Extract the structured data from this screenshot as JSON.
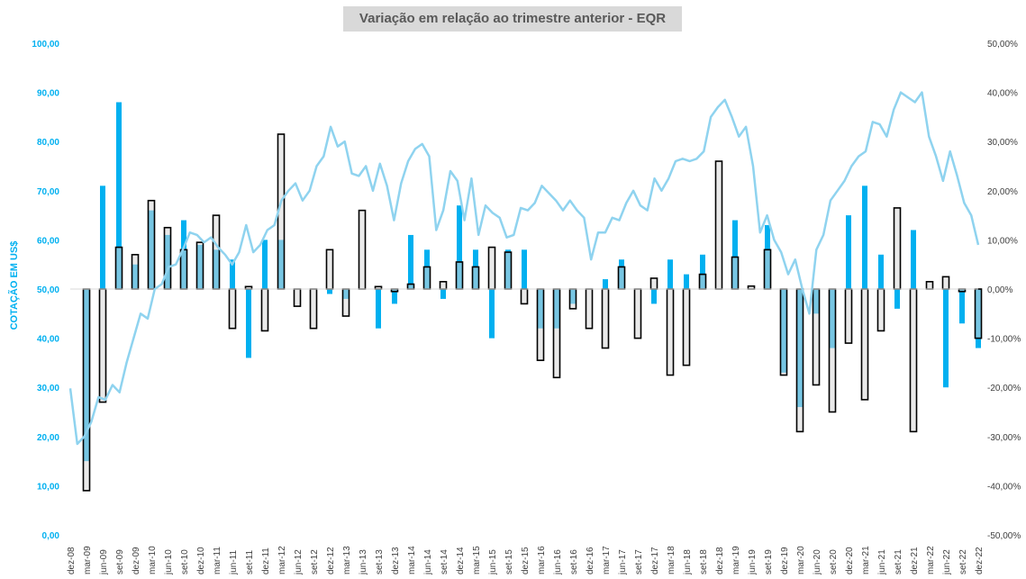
{
  "chart_data": {
    "type": "bar",
    "title": "Variação em relação ao trimestre anterior - EQR",
    "ylabel": "COTAÇÃO EM US$",
    "ylim_left": [
      0,
      100
    ],
    "ylim_right": [
      -50,
      50
    ],
    "y_ticks_left": [
      "0,00",
      "10,00",
      "20,00",
      "30,00",
      "40,00",
      "50,00",
      "60,00",
      "70,00",
      "80,00",
      "90,00",
      "100,00"
    ],
    "y_ticks_right": [
      "-50,00%",
      "-40,00%",
      "-30,00%",
      "-20,00%",
      "-10,00%",
      "0,00%",
      "10,00%",
      "20,00%",
      "30,00%",
      "40,00%",
      "50,00%"
    ],
    "x_labels": [
      "dez-08",
      "mar-09",
      "jun-09",
      "set-09",
      "dez-09",
      "mar-10",
      "jun-10",
      "set-10",
      "dez-10",
      "mar-11",
      "jun-11",
      "set-11",
      "dez-11",
      "mar-12",
      "jun-12",
      "set-12",
      "dez-12",
      "mar-13",
      "jun-13",
      "set-13",
      "dez-13",
      "mar-14",
      "jun-14",
      "set-14",
      "dez-14",
      "mar-15",
      "jun-15",
      "set-15",
      "dez-15",
      "mar-16",
      "jun-16",
      "set-16",
      "dez-16",
      "mar-17",
      "jun-17",
      "set-17",
      "dez-17",
      "mar-18",
      "jun-18",
      "set-18",
      "dez-18",
      "mar-19",
      "jun-19",
      "set-19",
      "dez-19",
      "mar-20",
      "jun-20",
      "set-20",
      "dez-20",
      "mar-21",
      "jun-21",
      "set-21",
      "dez-21",
      "mar-22",
      "jun-22",
      "set-22",
      "dez-22"
    ],
    "quarters": [
      "dez-08",
      "mar-09",
      "jun-09",
      "set-09",
      "dez-09",
      "mar-10",
      "jun-10",
      "set-10",
      "dez-10",
      "mar-11",
      "jun-11",
      "set-11",
      "dez-11",
      "mar-12",
      "jun-12",
      "set-12",
      "dez-12",
      "mar-13",
      "jun-13",
      "set-13",
      "dez-13",
      "mar-14",
      "jun-14",
      "set-14",
      "dez-14",
      "mar-15",
      "jun-15",
      "set-15",
      "dez-15",
      "mar-16",
      "jun-16",
      "set-16",
      "dez-16",
      "mar-17",
      "jun-17",
      "set-17",
      "dez-17",
      "mar-18",
      "jun-18",
      "set-18",
      "dez-18",
      "mar-19",
      "jun-19",
      "set-19",
      "dez-19",
      "mar-20",
      "jun-20",
      "set-20",
      "dez-20",
      "mar-21",
      "jun-21",
      "set-21",
      "dez-21",
      "mar-22",
      "jun-22",
      "set-22",
      "dez-22"
    ],
    "series": [
      {
        "values": [
          null,
          -35,
          21,
          38,
          5,
          16,
          11,
          14,
          9,
          8,
          6,
          -14,
          10,
          10,
          0,
          0,
          -1,
          -2,
          0,
          -8,
          -3,
          11,
          8,
          -2,
          17,
          8,
          -10,
          8,
          8,
          -8,
          -8,
          -3,
          0,
          2,
          6,
          0,
          -3,
          6,
          3,
          7,
          0,
          14,
          0,
          13,
          -17,
          -24,
          -5,
          -12,
          15,
          21,
          7,
          -4,
          12,
          0,
          -20,
          -7,
          -12
        ]
      },
      {
        "values": [
          null,
          -41,
          -23,
          8.5,
          7,
          18,
          12.5,
          8,
          9.5,
          15,
          -8,
          0.5,
          -8.5,
          31.5,
          -3.5,
          -8,
          8,
          -5.5,
          16,
          0.5,
          -0.5,
          1,
          4.5,
          1.5,
          5.5,
          4.5,
          8.5,
          7.5,
          -3,
          -14.5,
          -18,
          -4,
          -8,
          -12,
          4.5,
          -10,
          2.2,
          -17.5,
          -15.5,
          3,
          26,
          6.5,
          0.6,
          8,
          -17.5,
          -29,
          -19.5,
          -25,
          -11,
          -22.5,
          -8.5,
          16.5,
          -29,
          1.5,
          2.5,
          -0.5,
          -10
        ]
      },
      {
        "values": [
          29.8,
          18.5,
          20,
          23,
          28,
          27.5,
          30.5,
          29,
          35,
          40,
          45,
          44,
          50,
          51,
          54.5,
          55,
          58,
          61.5,
          61,
          59.5,
          60.5,
          58.5,
          57,
          55,
          57.5,
          63,
          57.5,
          59,
          62,
          63,
          68,
          70,
          71.5,
          68,
          70,
          75,
          77,
          83,
          79,
          80,
          73.5,
          73,
          75,
          70,
          75.5,
          71,
          64,
          71.5,
          76,
          78.5,
          79.5,
          77,
          62,
          66,
          74,
          72,
          64,
          72.5,
          61,
          67,
          65.5,
          64.5,
          60.5,
          61,
          66.5,
          66,
          67.5,
          71,
          69.5,
          68,
          66,
          68,
          66,
          64.5,
          56,
          61.5,
          61.5,
          64.5,
          64,
          67.5,
          70,
          67,
          66,
          72.5,
          70,
          72.5,
          76,
          76.5,
          76,
          76.5,
          78,
          85,
          87,
          88.5,
          85,
          81,
          83,
          75,
          61.5,
          65,
          60,
          57.5,
          53,
          56,
          50,
          45,
          58,
          61,
          68,
          70,
          72,
          75,
          77,
          78,
          84,
          83.5,
          81,
          86.5,
          90,
          89,
          88,
          90,
          81,
          77,
          72,
          78,
          73,
          67.5,
          65,
          59
        ]
      }
    ]
  }
}
